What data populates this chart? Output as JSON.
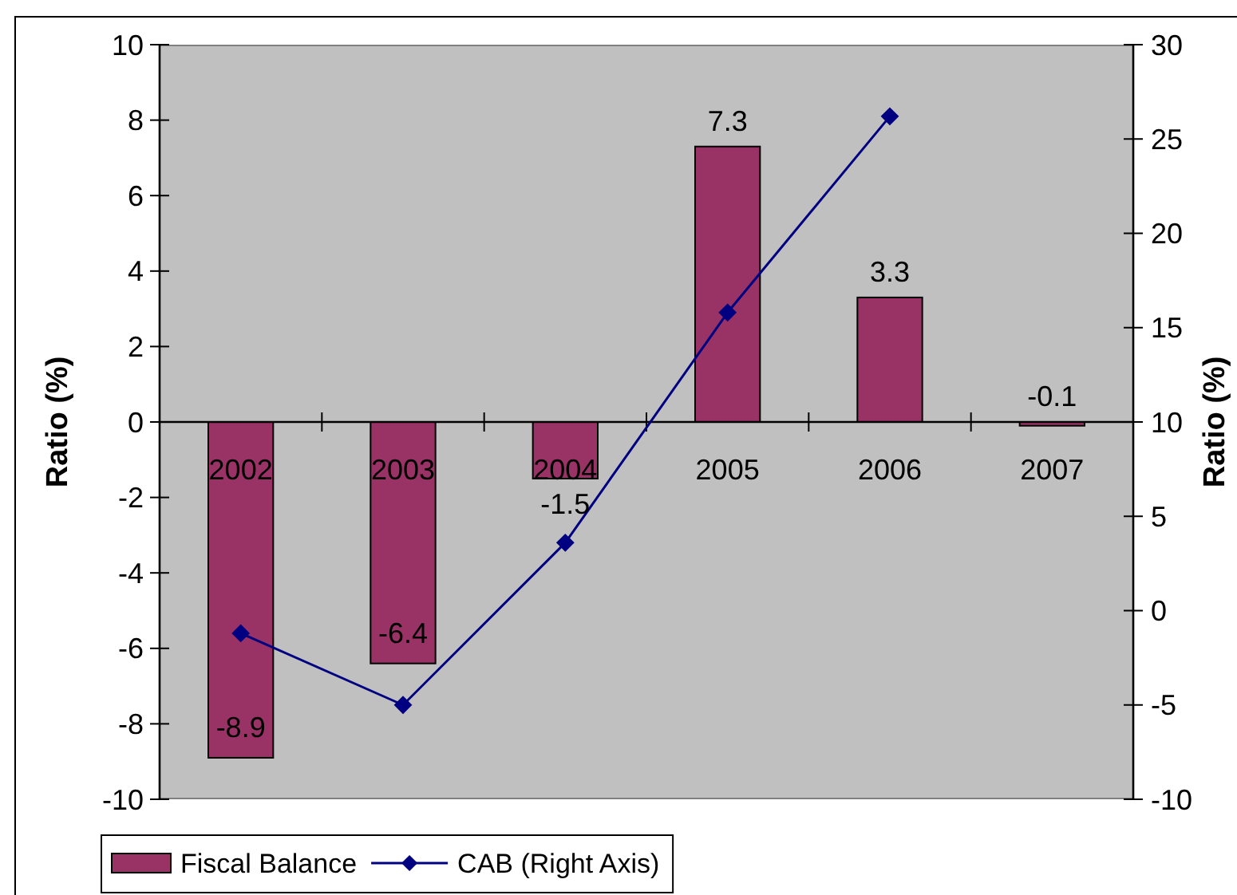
{
  "chart_data": {
    "type": "bar",
    "categories": [
      "2002",
      "2003",
      "2004",
      "2005",
      "2006",
      "2007"
    ],
    "series": [
      {
        "name": "Fiscal Balance",
        "color": "#993366",
        "values": [
          -8.9,
          -6.4,
          -1.5,
          7.3,
          3.3,
          -0.1
        ],
        "value_labels": [
          "-8.9",
          "-6.4",
          "-1.5",
          "7.3",
          "3.3",
          "-0.1"
        ]
      },
      {
        "name": "CAB (Right Axis)",
        "type": "line",
        "axis": "y2",
        "color": "#000080",
        "values": [
          -1.2,
          -5.0,
          3.6,
          15.8,
          26.2,
          null
        ]
      }
    ],
    "ylabel": "Ratio (%)",
    "y2label": "Ratio (%)",
    "ylim": [
      -10,
      10
    ],
    "yticks": [
      -10,
      -8,
      -6,
      -4,
      -2,
      0,
      2,
      4,
      6,
      8,
      10
    ],
    "y2lim": [
      -10,
      30
    ],
    "y2ticks": [
      -10,
      -5,
      0,
      5,
      10,
      15,
      20,
      25,
      30
    ],
    "marker": "diamond",
    "legend": "bottom"
  }
}
